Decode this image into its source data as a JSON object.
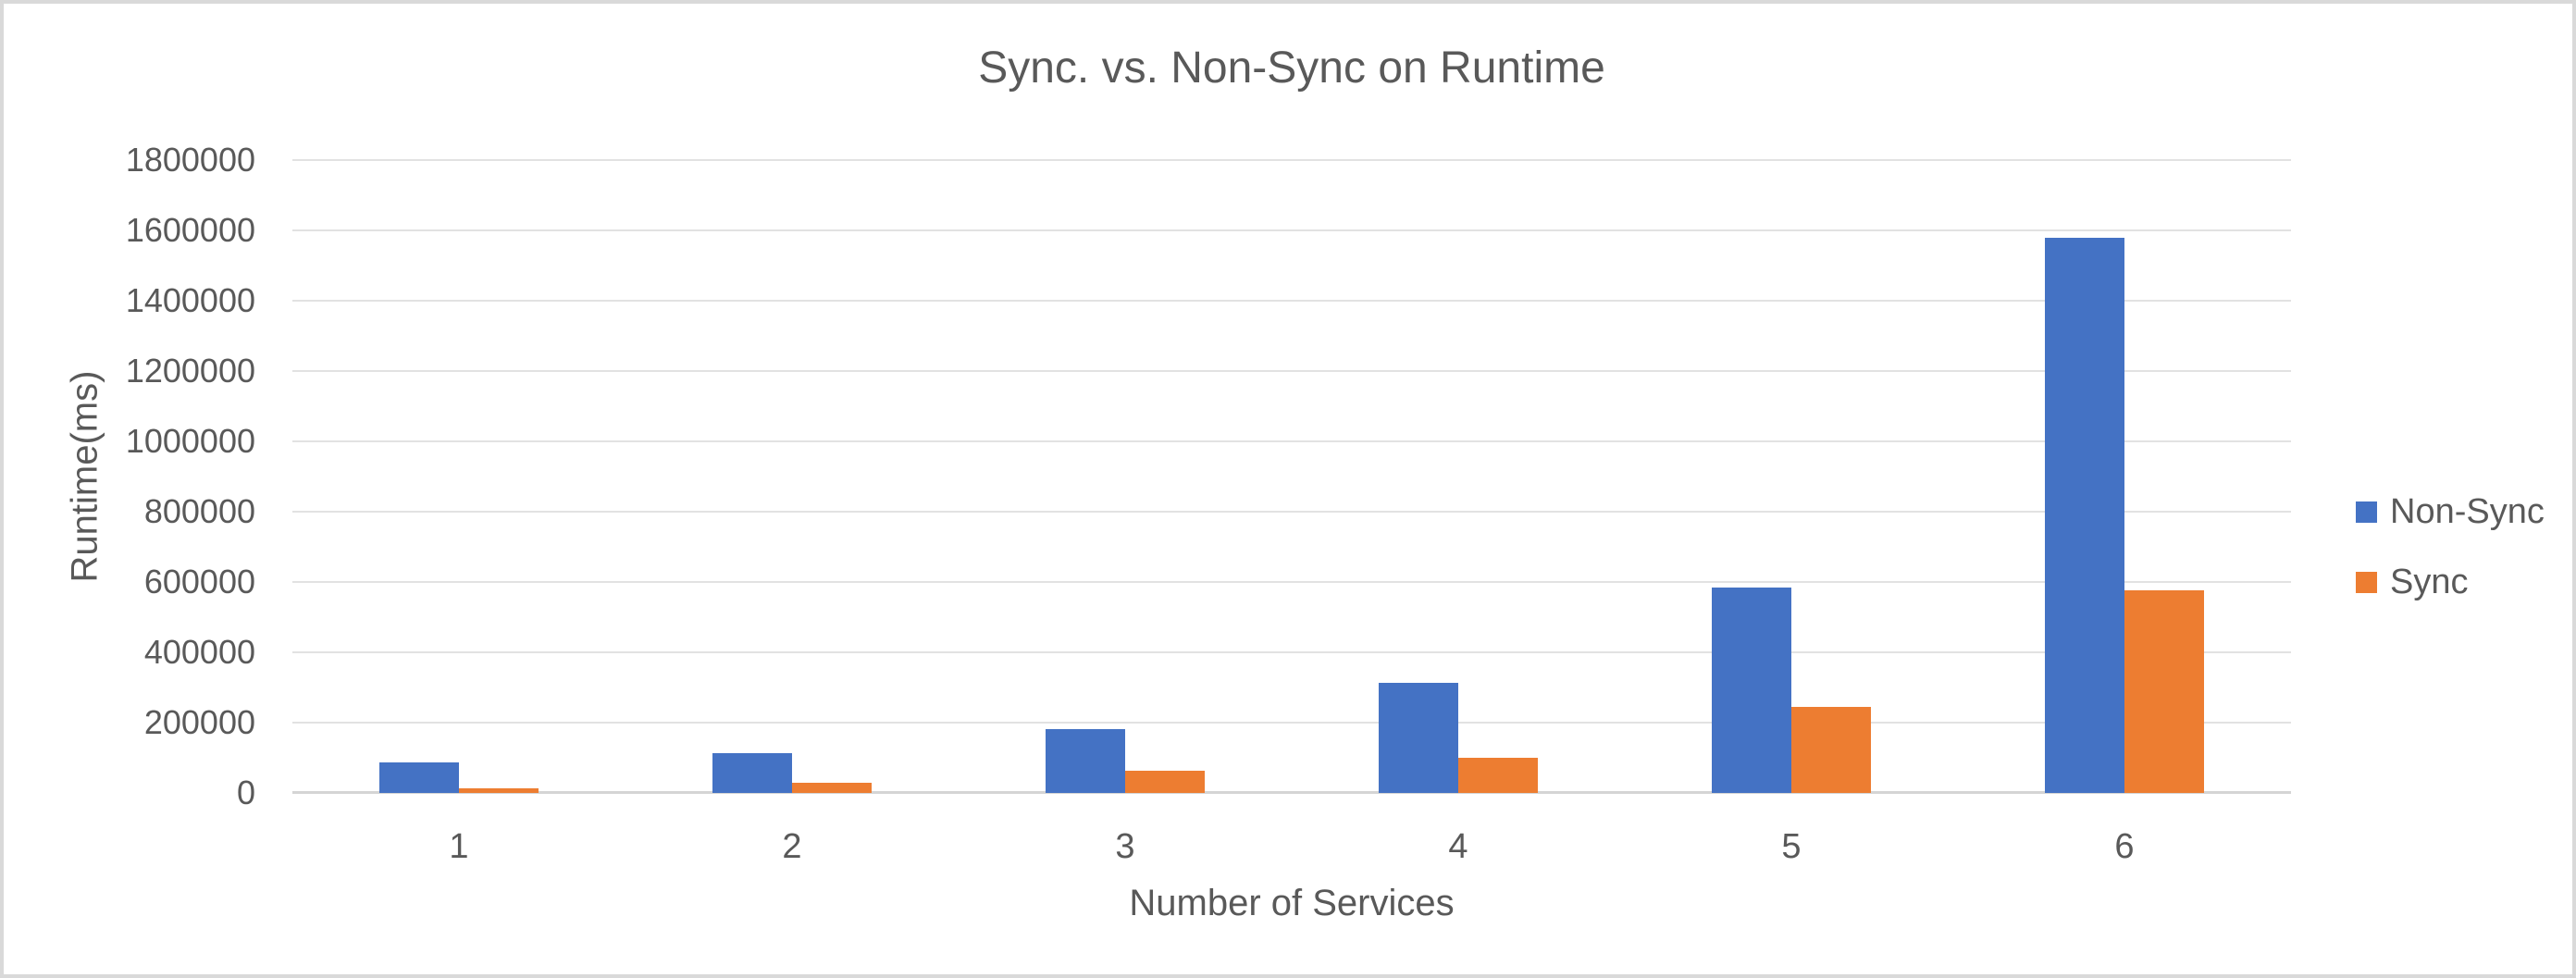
{
  "window": {
    "background": "#ffffff",
    "border_color": "#d9d9d9"
  },
  "chart_data": {
    "type": "bar",
    "title": "Sync. vs. Non-Sync on Runtime",
    "xlabel": "Number of Services",
    "ylabel": "Runtime(ms)",
    "categories": [
      "1",
      "2",
      "3",
      "4",
      "5",
      "6"
    ],
    "series": [
      {
        "name": "Non-Sync",
        "color": "#4472C4",
        "values": [
          86000,
          114000,
          182000,
          314000,
          585000,
          1578000
        ]
      },
      {
        "name": "Sync",
        "color": "#ED7D31",
        "values": [
          14000,
          30000,
          64000,
          100000,
          244000,
          577000
        ]
      }
    ],
    "ylim": [
      0,
      1800000
    ],
    "ytick_interval": 200000,
    "yticks": [
      "0",
      "200000",
      "400000",
      "600000",
      "800000",
      "1000000",
      "1200000",
      "1400000",
      "1600000",
      "1800000"
    ],
    "grid": "horizontal",
    "legend_position": "right",
    "text_color": "#595959",
    "gridline_color": "#e2e2e2"
  }
}
